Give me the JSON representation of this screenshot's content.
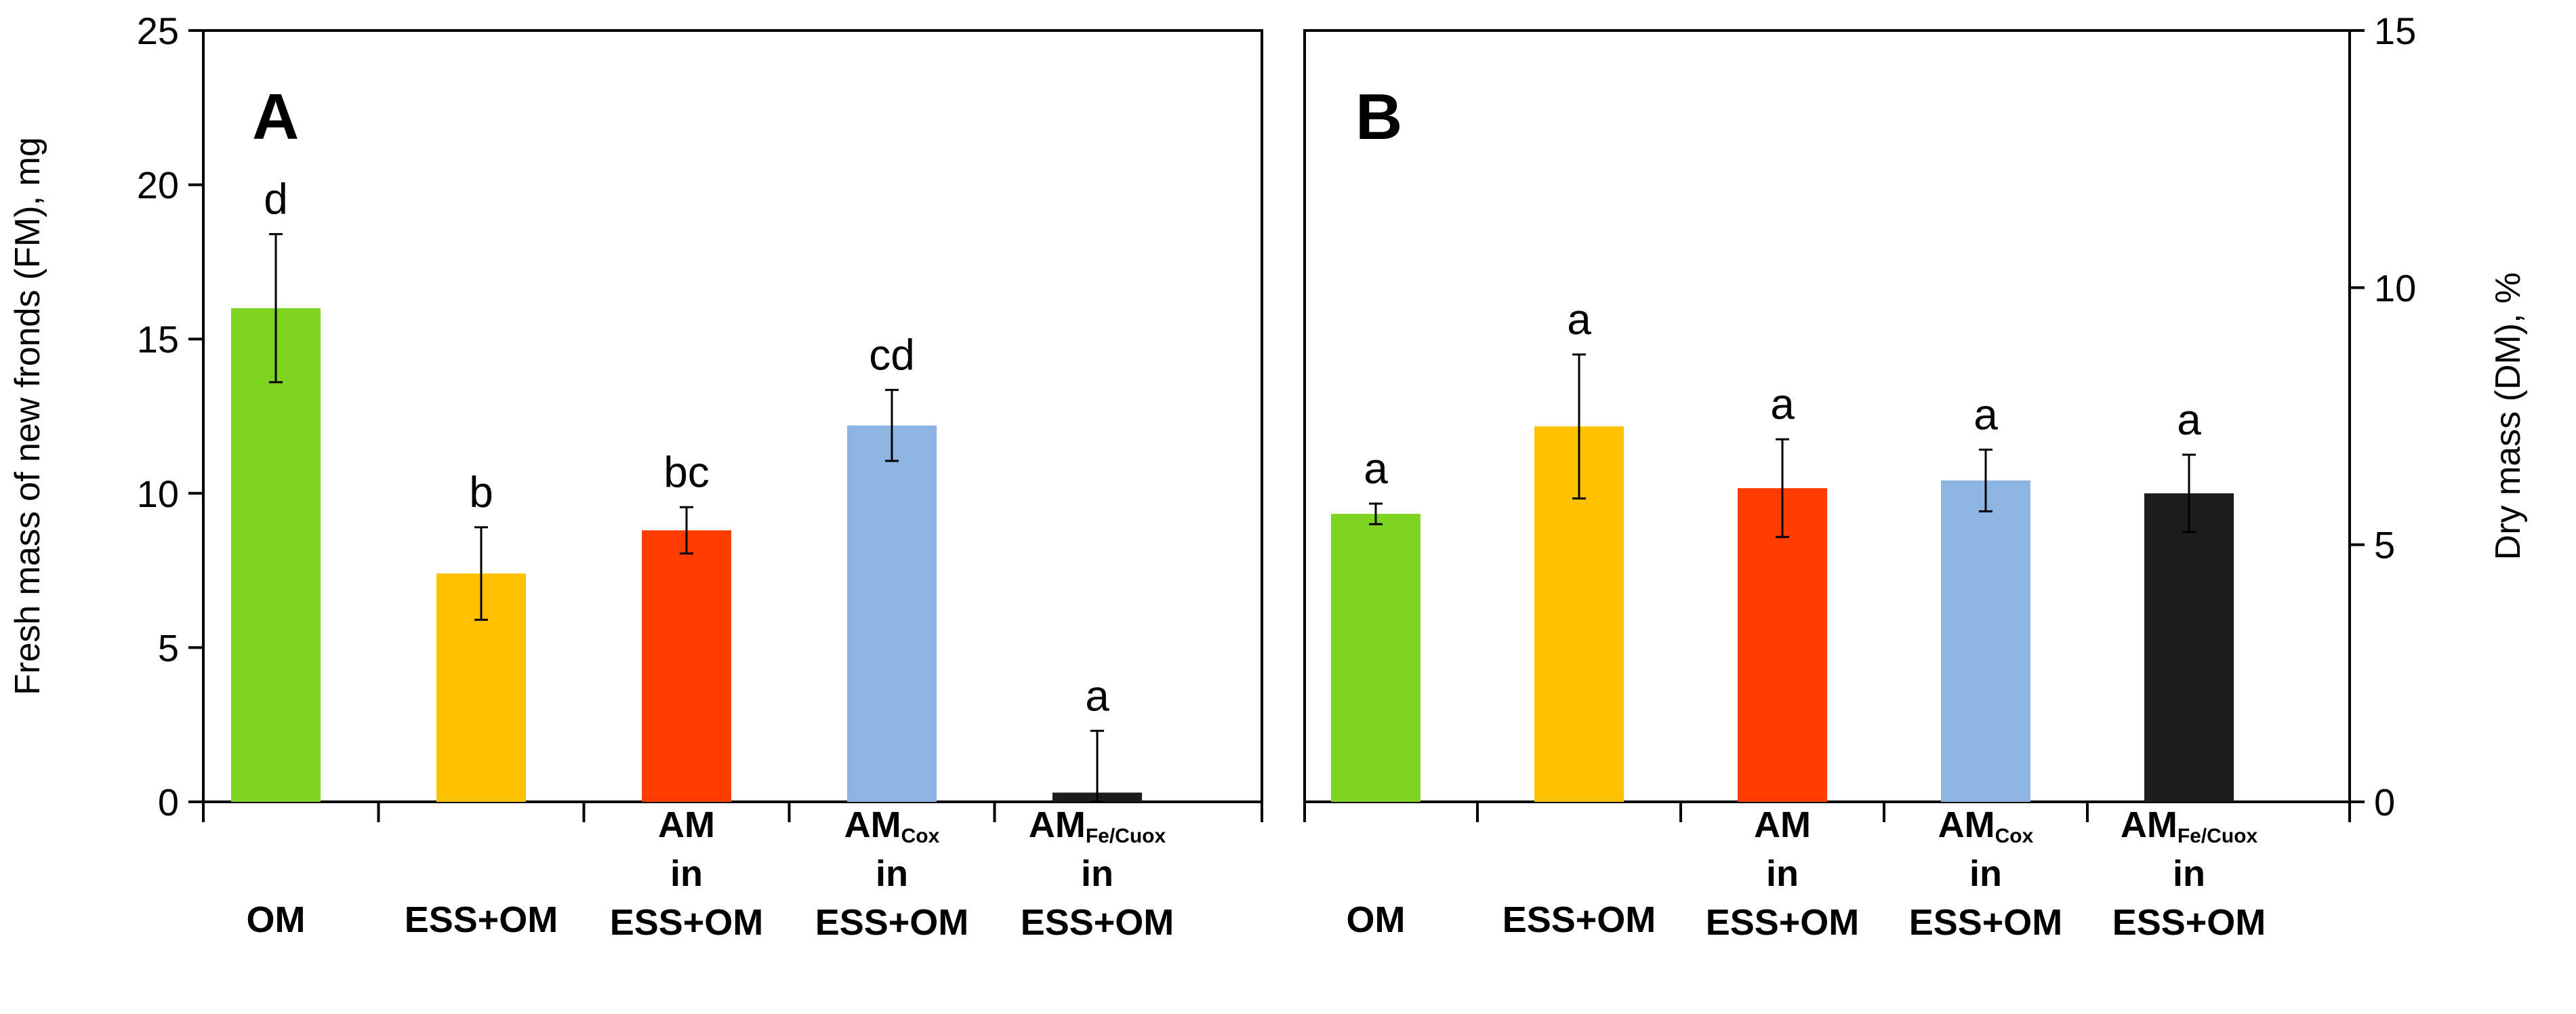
{
  "chart_data": [
    {
      "panel": "A",
      "type": "bar",
      "ylabel": "Fresh mass of new fronds (FM), mg",
      "ylim": [
        0,
        25
      ],
      "yticks": [
        "0",
        "5",
        "10",
        "15",
        "20",
        "25"
      ],
      "axis_side": "left",
      "categories": [
        {
          "lines": [
            {
              "main": "OM"
            }
          ]
        },
        {
          "lines": [
            {
              "main": "ESS+OM"
            }
          ]
        },
        {
          "lines": [
            {
              "main": "AM"
            },
            {
              "main": "in"
            },
            {
              "main": "ESS+OM"
            }
          ]
        },
        {
          "lines": [
            {
              "main": "AM",
              "sub": "Cox"
            },
            {
              "main": "in"
            },
            {
              "main": "ESS+OM"
            }
          ]
        },
        {
          "lines": [
            {
              "main": "AM",
              "sub": "Fe/Cuox"
            },
            {
              "main": "in"
            },
            {
              "main": "ESS+OM"
            }
          ]
        }
      ],
      "values": [
        16.0,
        7.4,
        8.8,
        12.2,
        0.3
      ],
      "errors": [
        2.4,
        1.5,
        0.75,
        1.15,
        2.0
      ],
      "significance": [
        "d",
        "b",
        "bc",
        "cd",
        "a"
      ],
      "colors": [
        "#7ed321",
        "#ffc000",
        "#ff3c00",
        "#8eb4e3",
        "#1c1c1c"
      ]
    },
    {
      "panel": "B",
      "type": "bar",
      "ylabel": "Dry mass (DM), %",
      "ylim": [
        0,
        15
      ],
      "yticks": [
        "0",
        "5",
        "10",
        "15"
      ],
      "axis_side": "right",
      "categories": [
        {
          "lines": [
            {
              "main": "OM"
            }
          ]
        },
        {
          "lines": [
            {
              "main": "ESS+OM"
            }
          ]
        },
        {
          "lines": [
            {
              "main": "AM"
            },
            {
              "main": "in"
            },
            {
              "main": "ESS+OM"
            }
          ]
        },
        {
          "lines": [
            {
              "main": "AM",
              "sub": "Cox"
            },
            {
              "main": "in"
            },
            {
              "main": "ESS+OM"
            }
          ]
        },
        {
          "lines": [
            {
              "main": "AM",
              "sub": "Fe/Cuox"
            },
            {
              "main": "in"
            },
            {
              "main": "ESS+OM"
            }
          ]
        }
      ],
      "values": [
        5.6,
        7.3,
        6.1,
        6.25,
        6.0
      ],
      "errors": [
        0.2,
        1.4,
        0.95,
        0.6,
        0.75
      ],
      "significance": [
        "a",
        "a",
        "a",
        "a",
        "a"
      ],
      "colors": [
        "#7ed321",
        "#ffc000",
        "#ff3c00",
        "#8eb4e3",
        "#1c1c1c"
      ]
    }
  ]
}
